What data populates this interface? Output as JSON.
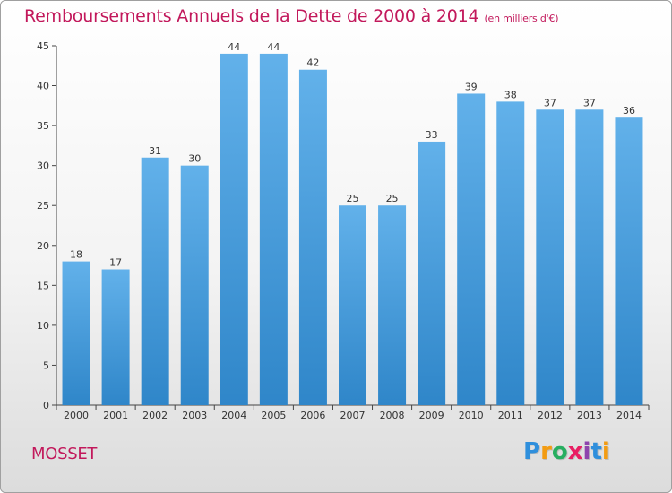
{
  "chart_data": {
    "type": "bar",
    "title": "Remboursements Annuels de la Dette de 2000 à 2014",
    "subtitle": "(en milliers d'€)",
    "categories": [
      "2000",
      "2001",
      "2002",
      "2003",
      "2004",
      "2005",
      "2006",
      "2007",
      "2008",
      "2009",
      "2010",
      "2011",
      "2012",
      "2013",
      "2014"
    ],
    "values": [
      18,
      17,
      31,
      30,
      44,
      44,
      42,
      25,
      25,
      33,
      39,
      38,
      37,
      37,
      36
    ],
    "ylim": [
      0,
      45
    ],
    "yticks": [
      0,
      5,
      10,
      15,
      20,
      25,
      30,
      35,
      40,
      45
    ],
    "grid": false,
    "bar_color": "#2f86c9",
    "bar_color_light": "#62b1ea"
  },
  "commune": "MOSSET",
  "logo": {
    "letters": [
      "P",
      "r",
      "o",
      "x",
      "i",
      "t",
      "i"
    ]
  },
  "colors": {
    "title": "#c2185b",
    "axis": "#444444"
  }
}
